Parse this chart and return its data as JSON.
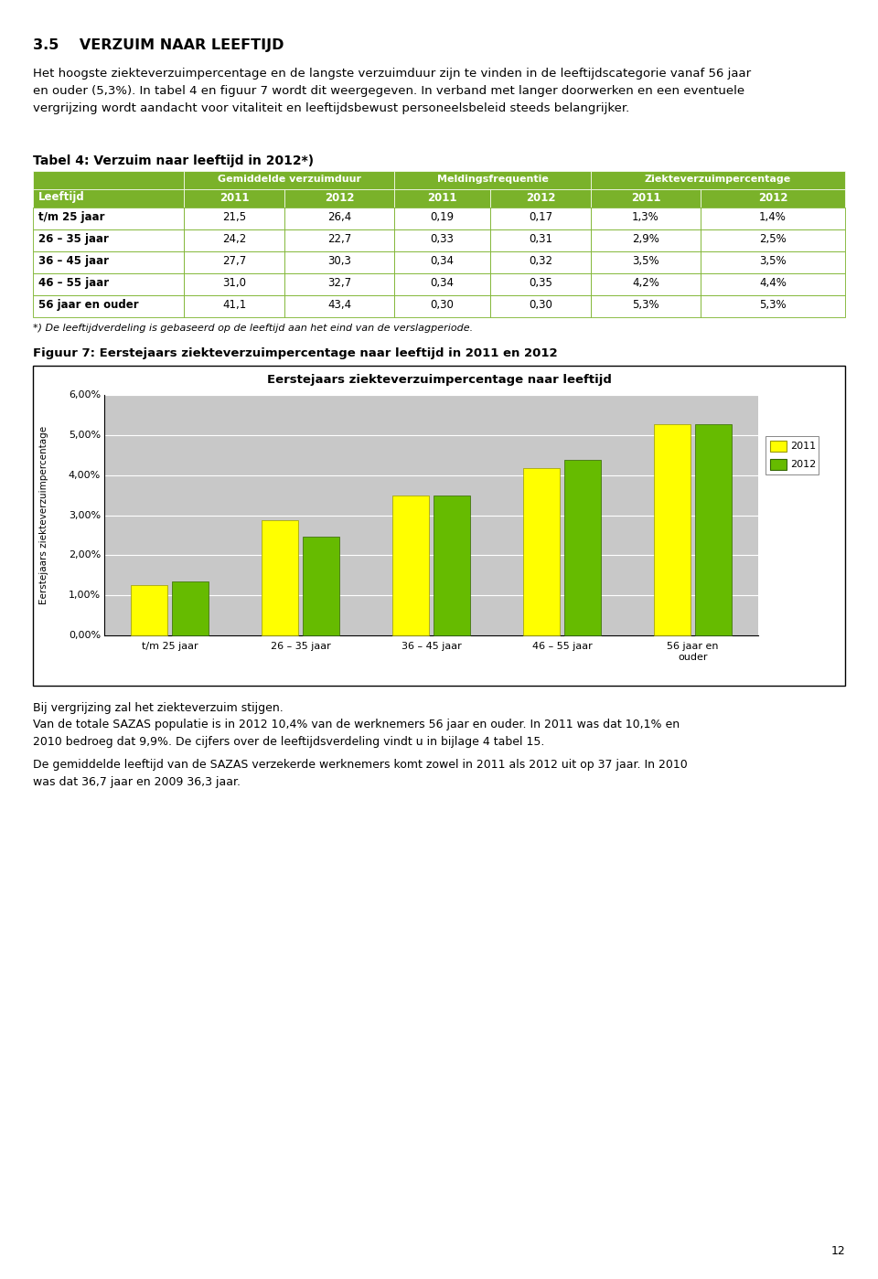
{
  "page_title": "3.5    VERZUIM NAAR LEEFTIJD",
  "intro_text": "Het hoogste ziekteverzuimpercentage en de langste verzuimduur zijn te vinden in de leeftijdscategorie vanaf 56 jaar\nen ouder (5,3%). In tabel 4 en figuur 7 wordt dit weergegeven. In verband met langer doorwerken en een eventuele\nvergrijzing wordt aandacht voor vitaliteit en leeftijdsbewust personeelsbeleid steeds belangrijker.",
  "table_title": "Tabel 4: Verzuim naar leeftijd in 2012*)",
  "table_header1": "Gemiddelde verzuimduur",
  "table_header2": "Meldingsfrequentie",
  "table_header3": "Ziekteverzuimpercentage",
  "table_col_leeftijd": "Leeftijd",
  "table_rows": [
    {
      "leeftijd": "t/m 25 jaar",
      "gvd_2011": "21,5",
      "gvd_2012": "26,4",
      "mf_2011": "0,19",
      "mf_2012": "0,17",
      "zvp_2011": "1,3%",
      "zvp_2012": "1,4%"
    },
    {
      "leeftijd": "26 – 35 jaar",
      "gvd_2011": "24,2",
      "gvd_2012": "22,7",
      "mf_2011": "0,33",
      "mf_2012": "0,31",
      "zvp_2011": "2,9%",
      "zvp_2012": "2,5%"
    },
    {
      "leeftijd": "36 – 45 jaar",
      "gvd_2011": "27,7",
      "gvd_2012": "30,3",
      "mf_2011": "0,34",
      "mf_2012": "0,32",
      "zvp_2011": "3,5%",
      "zvp_2012": "3,5%"
    },
    {
      "leeftijd": "46 – 55 jaar",
      "gvd_2011": "31,0",
      "gvd_2012": "32,7",
      "mf_2011": "0,34",
      "mf_2012": "0,35",
      "zvp_2011": "4,2%",
      "zvp_2012": "4,4%"
    },
    {
      "leeftijd": "56 jaar en ouder",
      "gvd_2011": "41,1",
      "gvd_2012": "43,4",
      "mf_2011": "0,30",
      "mf_2012": "0,30",
      "zvp_2011": "5,3%",
      "zvp_2012": "5,3%"
    }
  ],
  "table_footnote": "*) De leeftijdverdeling is gebaseerd op de leeftijd aan het eind van de verslagperiode.",
  "fig_title_outside": "Figuur 7: Eerstejaars ziekteverzuimpercentage naar leeftijd in 2011 en 2012",
  "fig_title_inside": "Eerstejaars ziekteverzuimpercentage naar leeftijd",
  "fig_ylabel": "Eerstejaars ziekteverzuimpercentage",
  "fig_categories": [
    "t/m 25 jaar",
    "26 – 35 jaar",
    "36 – 45 jaar",
    "46 – 55 jaar",
    "56 jaar en\nouder"
  ],
  "fig_values_2011": [
    1.25,
    2.88,
    3.49,
    4.17,
    5.27
  ],
  "fig_values_2012": [
    1.35,
    2.47,
    3.49,
    4.38,
    5.27
  ],
  "fig_color_2011": "#FFFF00",
  "fig_color_2012": "#66BB00",
  "fig_plot_bg": "#C8C8C8",
  "fig_ytick_labels": [
    "0,00%",
    "1,00%",
    "2,00%",
    "3,00%",
    "4,00%",
    "5,00%",
    "6,00%"
  ],
  "legend_2011": "2011",
  "legend_2012": "2012",
  "footer_text1": "Bij vergrijzing zal het ziekteverzuim stijgen.",
  "footer_text2": "Van de totale SAZAS populatie is in 2012 10,4% van de werknemers 56 jaar en ouder. In 2011 was dat 10,1% en\n2010 bedroeg dat 9,9%. De cijfers over de leeftijdsverdeling vindt u in bijlage 4 tabel 15.",
  "footer_text3": "De gemiddelde leeftijd van de SAZAS verzekerde werknemers komt zowel in 2011 als 2012 uit op 37 jaar. In 2010\nwas dat 36,7 jaar en 2009 36,3 jaar.",
  "page_number": "12",
  "green_color": "#7AB22A",
  "white": "#FFFFFF",
  "black": "#000000"
}
